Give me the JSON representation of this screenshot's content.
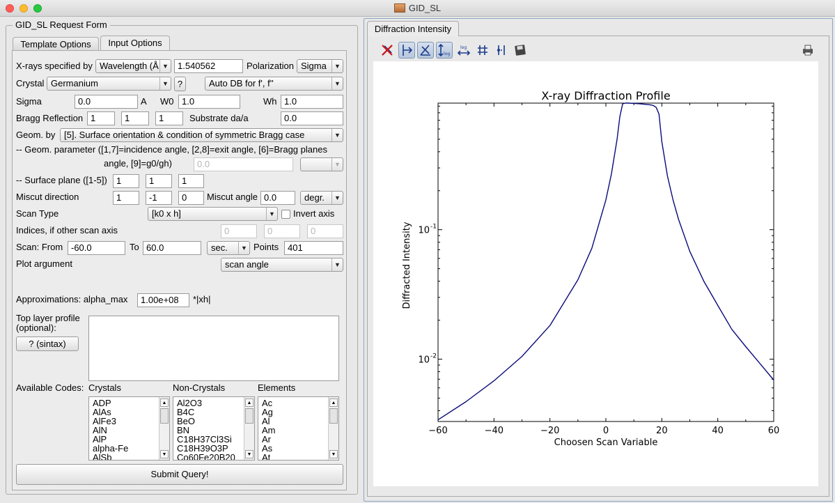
{
  "window": {
    "title": "GID_SL"
  },
  "left": {
    "group_title": "GID_SL Request Form",
    "tabs": [
      {
        "label": "Template Options"
      },
      {
        "label": "Input Options"
      }
    ],
    "xrays": {
      "label": "X-rays specified by",
      "mode": "Wavelength (Å",
      "value": "1.540562",
      "pol_label": "Polarization",
      "pol": "Sigma"
    },
    "crystal": {
      "label": "Crystal",
      "value": "Germanium",
      "help": "?",
      "db": "Auto DB for f', f''"
    },
    "sigma": {
      "label": "Sigma",
      "value": "0.0",
      "unit": "A",
      "w0_label": "W0",
      "w0": "1.0",
      "wh_label": "Wh",
      "wh": "1.0"
    },
    "bragg": {
      "label": "Bragg Reflection",
      "h": "1",
      "k": "1",
      "l": "1",
      "sub_label": "Substrate da/a",
      "sub": "0.0"
    },
    "geom": {
      "label": "Geom. by",
      "value": "[5]. Surface orientation & condition of symmetric Bragg case",
      "param_line1": "-- Geom. parameter ([1,7]=incidence angle, [2,8]=exit angle, [6]=Bragg planes",
      "param_line2": "angle, [9]=g0/gh)",
      "param_value": "0.0",
      "param_unit": ""
    },
    "surface": {
      "label": "-- Surface plane ([1-5])",
      "h": "1",
      "k": "1",
      "l": "1"
    },
    "miscut": {
      "label": "Miscut direction",
      "h": "1",
      "k": "-1",
      "l": "0",
      "angle_label": "Miscut angle",
      "angle": "0.0",
      "unit": "degr."
    },
    "scan": {
      "type_label": "Scan Type",
      "type": "[k0 x h]",
      "invert_label": "Invert axis",
      "indices_label": "Indices, if other scan axis",
      "i1": "0",
      "i2": "0",
      "i3": "0",
      "from_label": "Scan: From",
      "from": "-60.0",
      "to_label": "To",
      "to": "60.0",
      "unit": "sec.",
      "points_label": "Points",
      "points": "401"
    },
    "plot_arg": {
      "label": "Plot argument",
      "value": "scan angle"
    },
    "approx": {
      "label": "Approximations: alpha_max",
      "value": "1.00e+08",
      "suffix": "*|xh|"
    },
    "top_layer": {
      "label1": "Top layer profile",
      "label2": "(optional):",
      "button": "? (sintax)"
    },
    "codes": {
      "label": "Available Codes:",
      "crystals_label": "Crystals",
      "crystals": [
        "ADP",
        "AlAs",
        "AlFe3",
        "AlN",
        "AlP",
        "alpha-Fe",
        "AlSb"
      ],
      "noncrystals_label": "Non-Crystals",
      "noncrystals": [
        "Al2O3",
        "B4C",
        "BeO",
        "BN",
        "C18H37Cl3Si",
        "C18H39O3P",
        "Co60Fe20B20"
      ],
      "elements_label": "Elements",
      "elements": [
        "Ac",
        "Ag",
        "Al",
        "Am",
        "Ar",
        "As",
        "At"
      ]
    },
    "submit": "Submit Query!"
  },
  "right": {
    "tab": "Diffraction Intensity",
    "toolbar_icons": [
      "clear-plot-icon",
      "zoom-x-icon",
      "zoom-xy-icon",
      "log-y-icon",
      "log-x-icon",
      "grid-icon",
      "cursor-icon",
      "save-icon",
      "print-icon"
    ]
  },
  "chart_data": {
    "type": "line",
    "title": "X-ray Diffraction Profile",
    "xlabel": "Choosen Scan Variable",
    "ylabel": "Diffracted Intensity",
    "xlim": [
      -60,
      60
    ],
    "ylim": [
      0.0033,
      0.95
    ],
    "yscale": "log",
    "xticks": [
      "−60",
      "−40",
      "−20",
      "0",
      "20",
      "40",
      "60"
    ],
    "yticks": [
      {
        "value": 0.1,
        "base": "10",
        "exp": "-1"
      },
      {
        "value": 0.01,
        "base": "10",
        "exp": "-2"
      }
    ],
    "grid": false,
    "series": [
      {
        "color": "#0a0a7a",
        "x": [
          -60,
          -50,
          -40,
          -30,
          -20,
          -10,
          -5,
          0,
          2,
          4,
          5,
          6,
          7,
          8,
          10,
          12,
          14,
          16,
          17,
          18,
          19,
          20,
          22,
          24,
          26,
          30,
          35,
          40,
          45,
          50,
          55,
          60
        ],
        "y": [
          0.0034,
          0.0047,
          0.0068,
          0.0105,
          0.0182,
          0.041,
          0.072,
          0.17,
          0.27,
          0.5,
          0.75,
          0.94,
          0.95,
          0.95,
          0.945,
          0.94,
          0.93,
          0.92,
          0.91,
          0.88,
          0.78,
          0.48,
          0.26,
          0.17,
          0.12,
          0.068,
          0.04,
          0.026,
          0.017,
          0.0125,
          0.0093,
          0.0069
        ]
      }
    ]
  }
}
